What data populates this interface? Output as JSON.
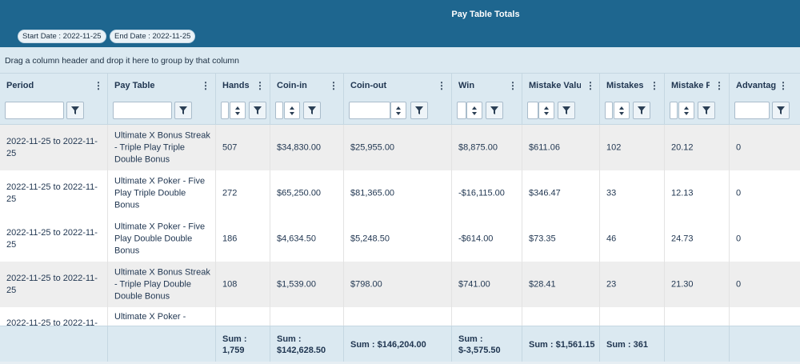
{
  "report": {
    "title": "Pay Table Totals",
    "start_date_chip": "Start Date : 2022-11-25",
    "end_date_chip": "End Date : 2022-11-25"
  },
  "grid": {
    "group_hint": "Drag a column header and drop it here to group by that column",
    "columns": [
      {
        "label": "Period"
      },
      {
        "label": "Pay Table"
      },
      {
        "label": "Hands"
      },
      {
        "label": "Coin-in"
      },
      {
        "label": "Coin-out"
      },
      {
        "label": "Win"
      },
      {
        "label": "Mistake Valu"
      },
      {
        "label": "Mistakes"
      },
      {
        "label": "Mistake F"
      },
      {
        "label": "Advantag"
      }
    ],
    "rows": [
      {
        "period": "2022-11-25 to 2022-11-25",
        "pay_table": "Ultimate X Bonus Streak - Triple Play Triple Double Bonus",
        "hands": "507",
        "coin_in": "$34,830.00",
        "coin_out": "$25,955.00",
        "win": "$8,875.00",
        "mistake_value": "$611.06",
        "mistakes": "102",
        "mistake_f": "20.12",
        "advantage": "0"
      },
      {
        "period": "2022-11-25 to 2022-11-25",
        "pay_table": "Ultimate X Poker - Five Play Triple Double Bonus",
        "hands": "272",
        "coin_in": "$65,250.00",
        "coin_out": "$81,365.00",
        "win": "-$16,115.00",
        "mistake_value": "$346.47",
        "mistakes": "33",
        "mistake_f": "12.13",
        "advantage": "0"
      },
      {
        "period": "2022-11-25 to 2022-11-25",
        "pay_table": "Ultimate X Poker - Five Play Double Double Bonus",
        "hands": "186",
        "coin_in": "$4,634.50",
        "coin_out": "$5,248.50",
        "win": "-$614.00",
        "mistake_value": "$73.35",
        "mistakes": "46",
        "mistake_f": "24.73",
        "advantage": "0"
      },
      {
        "period": "2022-11-25 to 2022-11-25",
        "pay_table": "Ultimate X Bonus Streak - Triple Play Double Double Bonus",
        "hands": "108",
        "coin_in": "$1,539.00",
        "coin_out": "$798.00",
        "win": "$741.00",
        "mistake_value": "$28.41",
        "mistakes": "23",
        "mistake_f": "21.30",
        "advantage": "0"
      },
      {
        "period": "2022-11-25 to 2022-11-",
        "pay_table": "Ultimate X Poker -",
        "hands": "",
        "coin_in": "",
        "coin_out": "",
        "win": "",
        "mistake_value": "",
        "mistakes": "",
        "mistake_f": "",
        "advantage": ""
      }
    ],
    "footer": {
      "hands": "Sum : 1,759",
      "coin_in": "Sum : $142,628.50",
      "coin_out": "Sum : $146,204.00",
      "win": "Sum : $-3,575.50",
      "mistake_value": "Sum : $1,561.15",
      "mistakes": "Sum : 361"
    }
  },
  "icons": {
    "column_menu": "kebab-menu-icon",
    "filter": "filter-funnel-icon",
    "spinner": "spin-arrows-icon"
  },
  "colors": {
    "header_bar": "#1e668f",
    "grid_header": "#dbe9f1",
    "alt_row": "#eeeeee"
  }
}
